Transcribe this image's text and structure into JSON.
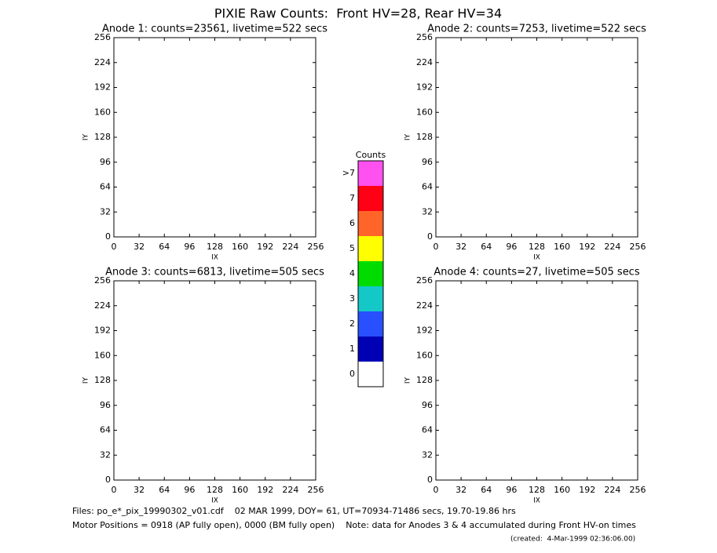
{
  "title": "PIXIE Raw Counts:  Front HV=28, Rear HV=34",
  "chart_data": [
    {
      "type": "heatmap",
      "title": "Anode 1: counts=23561, livetime=522 secs",
      "xlabel": "IX",
      "ylabel": "IY",
      "xlim": [
        0,
        256
      ],
      "ylim": [
        0,
        256
      ],
      "xticks": [
        0,
        32,
        64,
        96,
        128,
        160,
        192,
        224,
        256
      ],
      "yticks": [
        0,
        32,
        64,
        96,
        128,
        160,
        192,
        224,
        256
      ]
    },
    {
      "type": "heatmap",
      "title": "Anode 2: counts=7253, livetime=522 secs",
      "xlabel": "IX",
      "ylabel": "IY",
      "xlim": [
        0,
        256
      ],
      "ylim": [
        0,
        256
      ],
      "xticks": [
        0,
        32,
        64,
        96,
        128,
        160,
        192,
        224,
        256
      ],
      "yticks": [
        0,
        32,
        64,
        96,
        128,
        160,
        192,
        224,
        256
      ]
    },
    {
      "type": "heatmap",
      "title": "Anode 3: counts=6813, livetime=505 secs",
      "xlabel": "IX",
      "ylabel": "IY",
      "xlim": [
        0,
        256
      ],
      "ylim": [
        0,
        256
      ],
      "xticks": [
        0,
        32,
        64,
        96,
        128,
        160,
        192,
        224,
        256
      ],
      "yticks": [
        0,
        32,
        64,
        96,
        128,
        160,
        192,
        224,
        256
      ]
    },
    {
      "type": "heatmap",
      "title": "Anode 4: counts=27, livetime=505 secs",
      "xlabel": "IX",
      "ylabel": "IY",
      "xlim": [
        0,
        256
      ],
      "ylim": [
        0,
        256
      ],
      "xticks": [
        0,
        32,
        64,
        96,
        128,
        160,
        192,
        224,
        256
      ],
      "yticks": [
        0,
        32,
        64,
        96,
        128,
        160,
        192,
        224,
        256
      ]
    }
  ],
  "colorbar": {
    "title": "Counts",
    "labels": [
      "0",
      "1",
      "2",
      "3",
      "4",
      "5",
      "6",
      "7",
      ">7"
    ],
    "colors": [
      "#ffffff",
      "#0000b4",
      "#2850ff",
      "#14c8c8",
      "#00dc00",
      "#ffff00",
      "#ff6428",
      "#ff0014",
      "#ff50f0"
    ]
  },
  "footer": {
    "files": "Files: po_e*_pix_19990302_v01.cdf    02 MAR 1999, DOY= 61, UT=70934-71486 secs, 19.70-19.86 hrs",
    "motor": "Motor Positions = 0918 (AP fully open), 0000 (BM fully open)    Note: data for Anodes 3 & 4 accumulated during Front HV-on times",
    "created": "(created:  4-Mar-1999 02:36:06.00)"
  }
}
